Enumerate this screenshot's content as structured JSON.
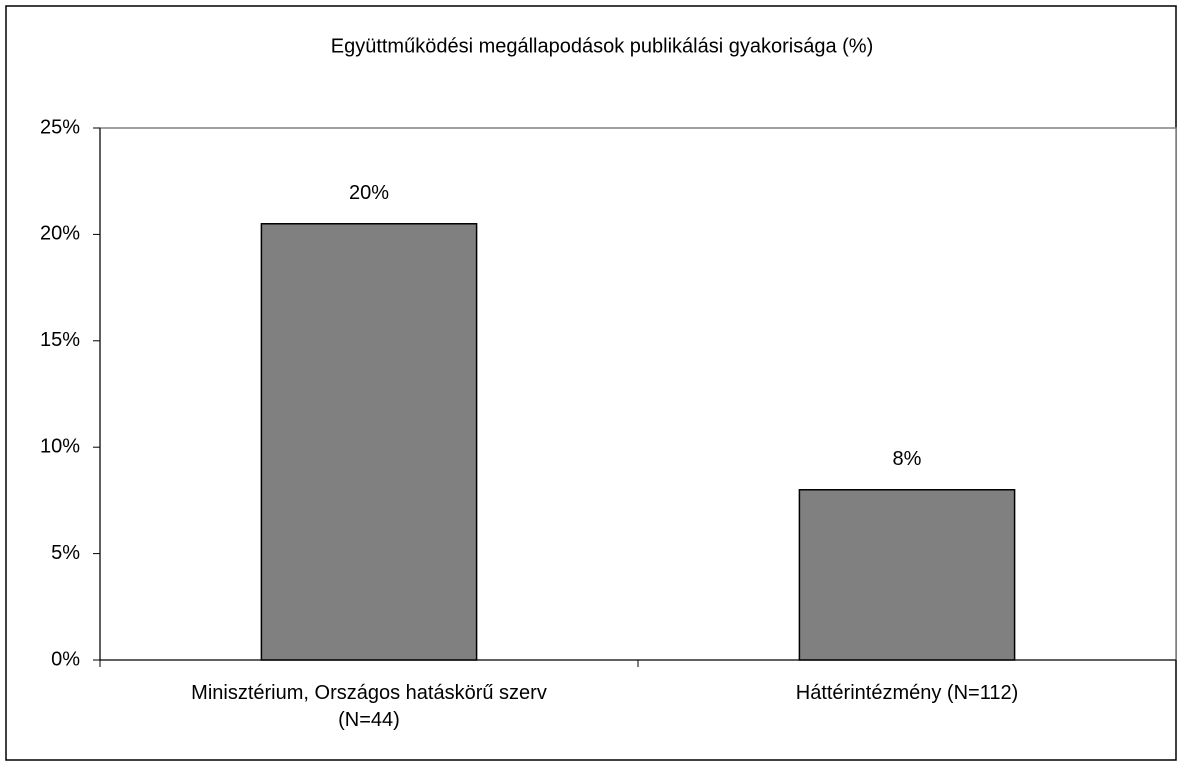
{
  "chart_data": {
    "type": "bar",
    "title": "Együttműködési megállapodások publikálási gyakorisága (%)",
    "categories": [
      "Minisztérium, Országos hatáskörű szerv (N=44)",
      "Háttérintézmény (N=112)"
    ],
    "values": [
      20.5,
      8
    ],
    "value_labels": [
      "20%",
      "8%"
    ],
    "color": "#808080",
    "ylim": [
      0,
      25
    ],
    "yticks": [
      {
        "value": 0,
        "label": "0%"
      },
      {
        "value": 5,
        "label": "5%"
      },
      {
        "value": 10,
        "label": "10%"
      },
      {
        "value": 15,
        "label": "15%"
      },
      {
        "value": 20,
        "label": "20%"
      },
      {
        "value": 25,
        "label": "25%"
      }
    ],
    "grid": false
  }
}
